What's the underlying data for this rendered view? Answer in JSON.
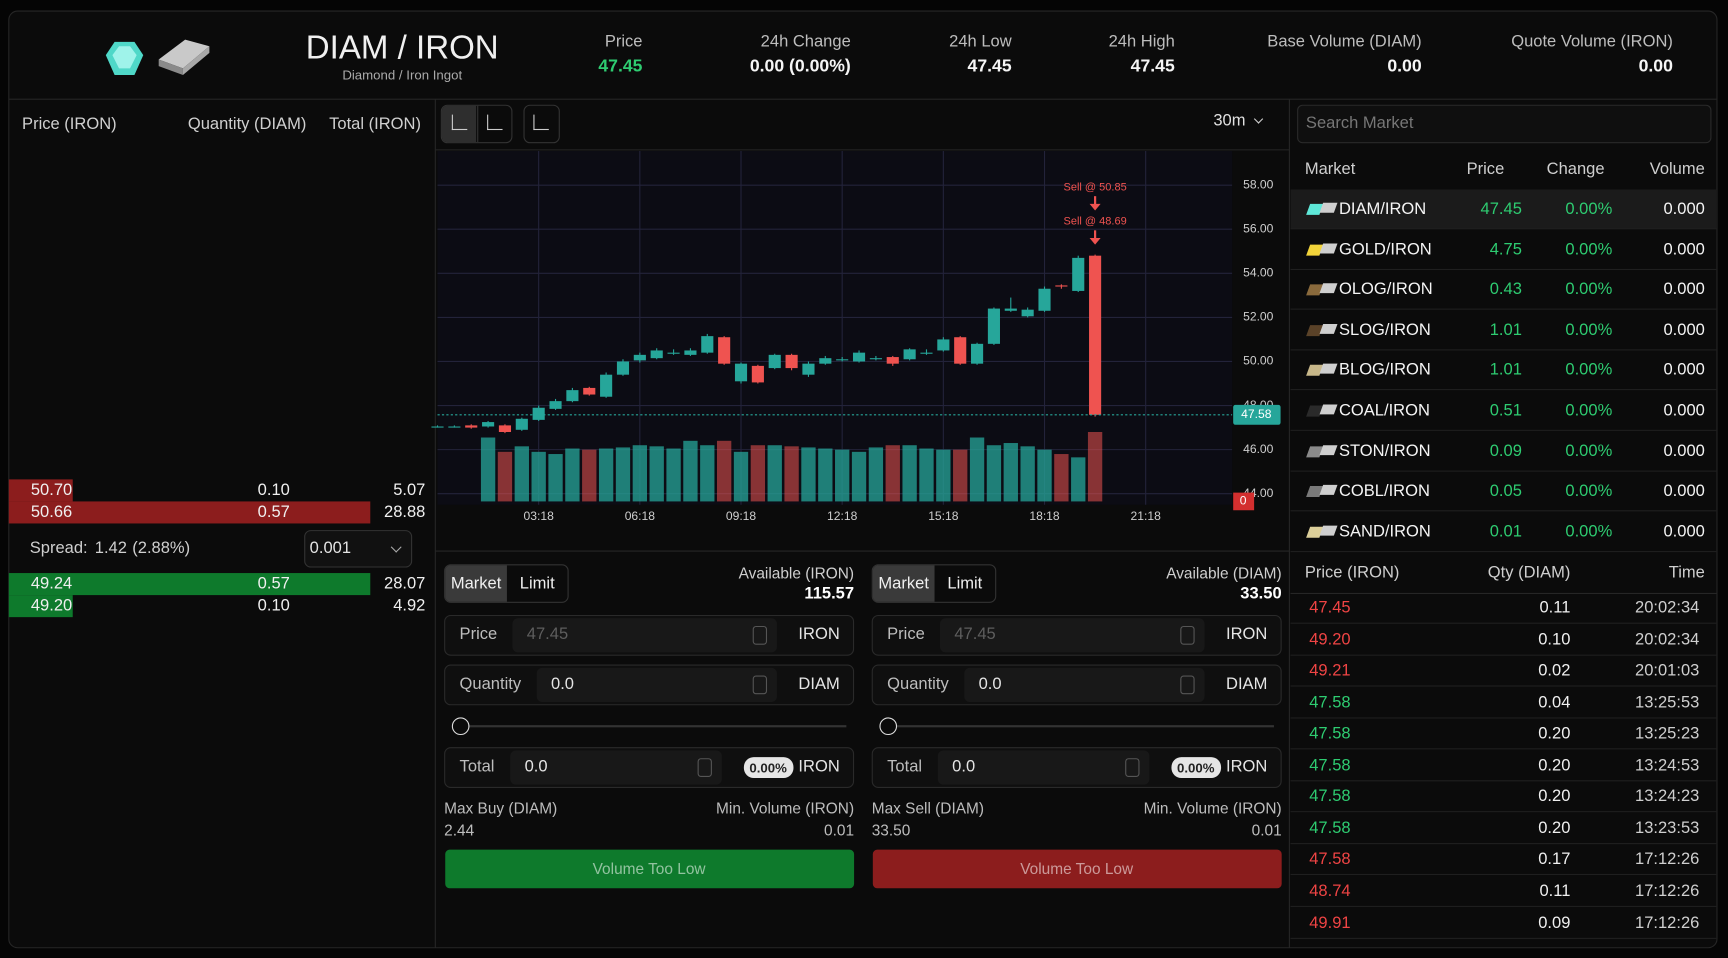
{
  "header": {
    "title": "DIAM / IRON",
    "subtitle": "Diamond / Iron Ingot",
    "stats": [
      {
        "label": "Price",
        "value": "47.45",
        "color": "#2ecc71"
      },
      {
        "label": "24h Change",
        "value": "0.00 (0.00%)"
      },
      {
        "label": "24h Low",
        "value": "47.45"
      },
      {
        "label": "24h High",
        "value": "47.45"
      },
      {
        "label": "Base Volume (DIAM)",
        "value": "0.00"
      },
      {
        "label": "Quote Volume (IRON)",
        "value": "0.00"
      }
    ]
  },
  "order_book": {
    "columns": [
      "Price (IRON)",
      "Quantity (DIAM)",
      "Total (IRON)"
    ],
    "asks": [
      [
        "50.70",
        "0.10",
        "5.07"
      ],
      [
        "50.66",
        "0.57",
        "28.88"
      ]
    ],
    "spread_label": "Spread:",
    "spread": "1.42",
    "spread_percent": "(2.88%)",
    "precision": "0.001",
    "bids": [
      [
        "49.24",
        "0.57",
        "28.07"
      ],
      [
        "49.20",
        "0.10",
        "4.92"
      ]
    ],
    "ask_color": "#8c1d1d",
    "bid_color": "#0e7a2c"
  },
  "toolbar": {
    "timeframe": "30m"
  },
  "chart_data": {
    "type": "candlestick",
    "categories": [
      null,
      null,
      null,
      null,
      null,
      null,
      "03:18",
      null,
      null,
      null,
      null,
      null,
      "06:18",
      null,
      null,
      null,
      null,
      null,
      "09:18",
      null,
      null,
      null,
      null,
      null,
      "12:18",
      null,
      null,
      null,
      null,
      null,
      "15:18",
      null,
      null,
      null,
      null,
      null,
      "18:18",
      null,
      null,
      null,
      null,
      null,
      "21:18",
      null,
      null,
      null,
      null
    ],
    "open": [
      47.05,
      47.05,
      47.1,
      47.05,
      47.1,
      46.9,
      47.35,
      47.85,
      48.2,
      48.8,
      48.4,
      49.4,
      50.05,
      50.15,
      50.4,
      50.3,
      50.4,
      51.1,
      49.1,
      49.8,
      49.7,
      50.3,
      49.4,
      49.9,
      50.1,
      50.0,
      50.15,
      50.2,
      50.1,
      50.4,
      50.5,
      51.1,
      49.9,
      50.8,
      52.3,
      52.05,
      52.3,
      53.45,
      53.2,
      54.8,
      null,
      null,
      null,
      null,
      null,
      null,
      null
    ],
    "high": [
      47.1,
      47.1,
      47.15,
      47.3,
      47.15,
      47.45,
      48.0,
      48.3,
      48.8,
      48.85,
      49.5,
      50.1,
      50.4,
      50.6,
      50.55,
      50.6,
      51.25,
      51.15,
      49.95,
      49.85,
      50.35,
      50.35,
      50.0,
      50.25,
      50.2,
      50.5,
      50.25,
      50.25,
      50.6,
      50.55,
      51.1,
      51.15,
      50.85,
      52.45,
      52.9,
      52.45,
      53.4,
      53.5,
      54.8,
      54.85,
      null,
      null,
      null,
      null,
      null,
      null,
      null
    ],
    "low": [
      47.0,
      47.0,
      46.95,
      47.0,
      46.75,
      46.85,
      47.3,
      47.8,
      48.15,
      48.45,
      48.35,
      49.35,
      49.95,
      50.1,
      50.3,
      50.25,
      50.35,
      49.85,
      49.0,
      49.0,
      49.65,
      49.6,
      49.3,
      49.85,
      50.0,
      49.95,
      50.05,
      49.8,
      50.05,
      50.3,
      50.45,
      49.85,
      49.85,
      50.75,
      52.25,
      52.0,
      52.25,
      53.3,
      53.15,
      47.5,
      null,
      null,
      null,
      null,
      null,
      null,
      null
    ],
    "close": [
      47.05,
      47.05,
      47.0,
      47.25,
      46.8,
      47.4,
      47.9,
      48.2,
      48.7,
      48.5,
      49.4,
      50.0,
      50.3,
      50.5,
      50.4,
      50.5,
      51.15,
      49.9,
      49.9,
      49.05,
      50.3,
      49.7,
      49.9,
      50.15,
      50.1,
      50.4,
      50.15,
      49.9,
      50.55,
      50.4,
      51.0,
      49.9,
      50.8,
      52.4,
      52.4,
      52.35,
      53.3,
      53.4,
      54.7,
      47.58,
      null,
      null,
      null,
      null,
      null,
      null,
      null
    ],
    "volume": [
      null,
      null,
      null,
      58,
      45,
      50,
      45,
      43,
      48,
      47,
      48,
      49,
      51,
      50,
      48,
      55,
      51,
      55,
      45,
      51,
      51,
      50,
      49,
      48,
      47,
      45,
      49,
      51,
      51,
      48,
      47,
      47,
      58,
      51,
      53,
      50,
      47,
      43,
      40,
      63,
      null,
      null,
      null,
      null,
      null,
      null,
      null
    ],
    "up_color": "#26a69a",
    "down_color": "#ef5350",
    "ylim": [
      43.5,
      59.55
    ],
    "yticks": [
      {
        "value": 44,
        "label": "44.00"
      },
      {
        "value": 46,
        "label": "46.00"
      },
      {
        "value": 48,
        "label": "48.00"
      },
      {
        "value": 50,
        "label": "50.00"
      },
      {
        "value": 52,
        "label": "52.00"
      },
      {
        "value": 54,
        "label": "54.00"
      },
      {
        "value": 56,
        "label": "56.00"
      },
      {
        "value": 58,
        "label": "58.00"
      }
    ],
    "volume_ylim": [
      0,
      100
    ],
    "volume_yticks": [
      0
    ],
    "last_price": {
      "value": 47.58,
      "label": "47.58"
    },
    "annotations": [
      "Sell @ 50.85",
      "Sell @ 48.69"
    ],
    "grid": true
  },
  "order_forms": [
    {
      "tabs": [
        "Market",
        "Limit"
      ],
      "available_label": "Available (IRON)",
      "available": "115.57",
      "fields": [
        {
          "label": "Price",
          "placeholder": "47.45",
          "unit": "IRON"
        },
        {
          "label": "Quantity",
          "value": "0.0",
          "unit": "DIAM"
        },
        {
          "label": "Total",
          "value": "0.0",
          "badge": "0.00%",
          "unit": "IRON"
        }
      ],
      "max_label": "Max Buy (DIAM)",
      "max": "2.44",
      "min_label": "Min. Volume (IRON)",
      "min": "0.01",
      "button": "Volume Too Low",
      "color": "#0e7a2c"
    },
    {
      "tabs": [
        "Market",
        "Limit"
      ],
      "available_label": "Available (DIAM)",
      "available": "33.50",
      "fields": [
        {
          "label": "Price",
          "placeholder": "47.45",
          "unit": "IRON"
        },
        {
          "label": "Quantity",
          "value": "0.0",
          "unit": "DIAM"
        },
        {
          "label": "Total",
          "value": "0.0",
          "badge": "0.00%",
          "unit": "IRON"
        }
      ],
      "max_label": "Max Sell (DIAM)",
      "max": "33.50",
      "min_label": "Min. Volume (IRON)",
      "min": "0.01",
      "button": "Volume Too Low",
      "color": "#8c1d1d"
    }
  ],
  "markets": {
    "search_placeholder": "Search Market",
    "columns": [
      "Market",
      "Price",
      "Change",
      "Volume"
    ],
    "rows": [
      {
        "name": "DIAM/IRON",
        "price": "47.45",
        "change": "0.00%",
        "volume": "0.000",
        "icon": "#5ee8d8"
      },
      {
        "name": "GOLD/IRON",
        "price": "4.75",
        "change": "0.00%",
        "volume": "0.000",
        "icon": "#f2d43a"
      },
      {
        "name": "OLOG/IRON",
        "price": "0.43",
        "change": "0.00%",
        "volume": "0.000",
        "icon": "#8a6a3c"
      },
      {
        "name": "SLOG/IRON",
        "price": "1.01",
        "change": "0.00%",
        "volume": "0.000",
        "icon": "#5a4228"
      },
      {
        "name": "BLOG/IRON",
        "price": "1.01",
        "change": "0.00%",
        "volume": "0.000",
        "icon": "#c8b88a"
      },
      {
        "name": "COAL/IRON",
        "price": "0.51",
        "change": "0.00%",
        "volume": "0.000",
        "icon": "#2a2a2a"
      },
      {
        "name": "STON/IRON",
        "price": "0.09",
        "change": "0.00%",
        "volume": "0.000",
        "icon": "#8a8a8a"
      },
      {
        "name": "COBL/IRON",
        "price": "0.05",
        "change": "0.00%",
        "volume": "0.000",
        "icon": "#7a7a7a"
      },
      {
        "name": "SAND/IRON",
        "price": "0.01",
        "change": "0.00%",
        "volume": "0.000",
        "icon": "#dccf9a"
      }
    ]
  },
  "trades": {
    "columns": [
      "Price (IRON)",
      "Qty (DIAM)",
      "Time"
    ],
    "rows": [
      {
        "price": "47.45",
        "qty": "0.11",
        "time": "20:02:34",
        "color": "#ef4444"
      },
      {
        "price": "49.20",
        "qty": "0.10",
        "time": "20:02:34",
        "color": "#ef4444"
      },
      {
        "price": "49.21",
        "qty": "0.02",
        "time": "20:01:03",
        "color": "#ef4444"
      },
      {
        "price": "47.58",
        "qty": "0.04",
        "time": "13:25:53",
        "color": "#2ecc71"
      },
      {
        "price": "47.58",
        "qty": "0.20",
        "time": "13:25:23",
        "color": "#2ecc71"
      },
      {
        "price": "47.58",
        "qty": "0.20",
        "time": "13:24:53",
        "color": "#2ecc71"
      },
      {
        "price": "47.58",
        "qty": "0.20",
        "time": "13:24:23",
        "color": "#2ecc71"
      },
      {
        "price": "47.58",
        "qty": "0.20",
        "time": "13:23:53",
        "color": "#2ecc71"
      },
      {
        "price": "47.58",
        "qty": "0.17",
        "time": "17:12:26",
        "color": "#ef4444"
      },
      {
        "price": "48.74",
        "qty": "0.11",
        "time": "17:12:26",
        "color": "#ef4444"
      },
      {
        "price": "49.91",
        "qty": "0.09",
        "time": "17:12:26",
        "color": "#ef4444"
      }
    ]
  }
}
